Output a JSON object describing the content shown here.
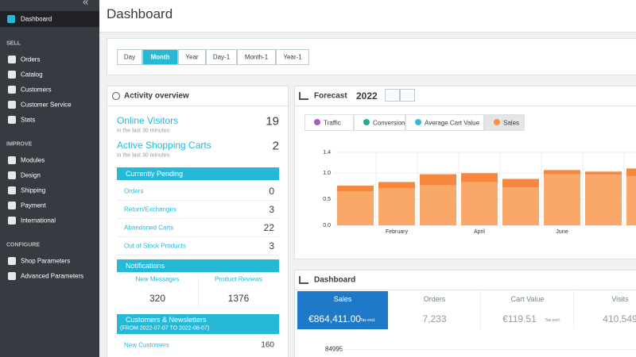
{
  "sidebar": {
    "toggle": "«",
    "top": [
      {
        "label": "Dashboard",
        "active": true
      }
    ],
    "sections": [
      {
        "title": "SELL",
        "items": [
          "Orders",
          "Catalog",
          "Customers",
          "Customer Service",
          "Stats"
        ]
      },
      {
        "title": "IMPROVE",
        "items": [
          "Modules",
          "Design",
          "Shipping",
          "Payment",
          "International"
        ]
      },
      {
        "title": "CONFIGURE",
        "items": [
          "Shop Parameters",
          "Advanced Parameters"
        ]
      }
    ]
  },
  "header": {
    "title": "Dashboard"
  },
  "periods": [
    {
      "label": "Day"
    },
    {
      "label": "Month",
      "active": true
    },
    {
      "label": "Year"
    },
    {
      "label": "Day-1"
    },
    {
      "label": "Month-1"
    },
    {
      "label": "Year-1"
    }
  ],
  "activity": {
    "title": "Activity overview",
    "stats": [
      {
        "label": "Online Visitors",
        "note": "in the last 30 minutes",
        "value": 19
      },
      {
        "label": "Active Shopping Carts",
        "note": "in the last 30 minutes",
        "value": 2
      }
    ],
    "pending": {
      "title": "Currently Pending",
      "rows": [
        [
          "Orders",
          0
        ],
        [
          "Return/Exchanges",
          3
        ],
        [
          "Abandoned Carts",
          22
        ],
        [
          "Out of Stock Products",
          3
        ]
      ]
    },
    "notifications": {
      "title": "Notifications",
      "items": [
        [
          "New Messages",
          320
        ],
        [
          "Product Reviews",
          1376
        ]
      ]
    },
    "customers": {
      "title": "Customers & Newsletters",
      "subtitle": "(FROM 2022-07-07 TO 2022-08-07)",
      "rows": [
        [
          "New Customers",
          160
        ]
      ]
    }
  },
  "forecast": {
    "title": "Forecast",
    "year": 2022,
    "legend": [
      {
        "name": "Traffic",
        "color": "#a15fc1"
      },
      {
        "name": "Conversion",
        "color": "#25a89a"
      },
      {
        "name": "Average Cart Value",
        "color": "#3bb6df"
      },
      {
        "name": "Sales",
        "color": "#f6924b",
        "active": true
      }
    ],
    "chart_data": {
      "type": "bar",
      "stacked": true,
      "categories": [
        null,
        "February",
        null,
        "April",
        null,
        "June",
        null,
        null
      ],
      "series": [
        {
          "color": "#f9a86a",
          "values": [
            0.65,
            0.71,
            0.77,
            0.83,
            0.73,
            0.98,
            0.97,
            0.94
          ]
        },
        {
          "color": "#f5873f",
          "values": [
            0.11,
            0.12,
            0.21,
            0.17,
            0.16,
            0.08,
            0.06,
            0.15
          ]
        }
      ],
      "ylim": [
        0,
        1.4
      ],
      "yticks": [
        {
          "value": 0,
          "label": "0.0"
        },
        0.5,
        {
          "value": 1,
          "label": "1.0"
        },
        1.4
      ],
      "grid": true
    }
  },
  "dashboard": {
    "title": "Dashboard",
    "kpis": [
      {
        "label": "Sales",
        "value": "€864,411.00",
        "note": "Tax excl.",
        "active": true
      },
      {
        "label": "Orders",
        "value": "7,233"
      },
      {
        "label": "Cart Value",
        "value": "€119.51",
        "note": "Tax excl."
      },
      {
        "label": "Visits",
        "value": "410,549"
      }
    ],
    "chart_tick": 84995
  }
}
